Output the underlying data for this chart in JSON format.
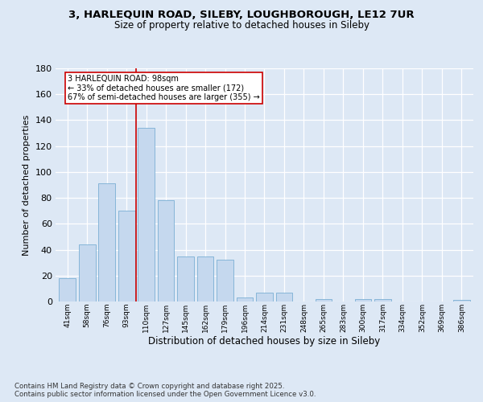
{
  "title1": "3, HARLEQUIN ROAD, SILEBY, LOUGHBOROUGH, LE12 7UR",
  "title2": "Size of property relative to detached houses in Sileby",
  "xlabel": "Distribution of detached houses by size in Sileby",
  "ylabel": "Number of detached properties",
  "categories": [
    "41sqm",
    "58sqm",
    "76sqm",
    "93sqm",
    "110sqm",
    "127sqm",
    "145sqm",
    "162sqm",
    "179sqm",
    "196sqm",
    "214sqm",
    "231sqm",
    "248sqm",
    "265sqm",
    "283sqm",
    "300sqm",
    "317sqm",
    "334sqm",
    "352sqm",
    "369sqm",
    "386sqm"
  ],
  "values": [
    18,
    44,
    91,
    70,
    134,
    78,
    35,
    35,
    32,
    3,
    7,
    7,
    0,
    2,
    0,
    2,
    2,
    0,
    0,
    0,
    1
  ],
  "bar_color": "#c5d8ee",
  "bar_edge_color": "#7aafd4",
  "vline_x": 3.5,
  "vline_color": "#cc0000",
  "annotation_text": "3 HARLEQUIN ROAD: 98sqm\n← 33% of detached houses are smaller (172)\n67% of semi-detached houses are larger (355) →",
  "annotation_box_color": "#ffffff",
  "annotation_box_edge": "#cc0000",
  "ylim": [
    0,
    180
  ],
  "yticks": [
    0,
    20,
    40,
    60,
    80,
    100,
    120,
    140,
    160,
    180
  ],
  "bg_color": "#dde8f5",
  "footer": "Contains HM Land Registry data © Crown copyright and database right 2025.\nContains public sector information licensed under the Open Government Licence v3.0."
}
